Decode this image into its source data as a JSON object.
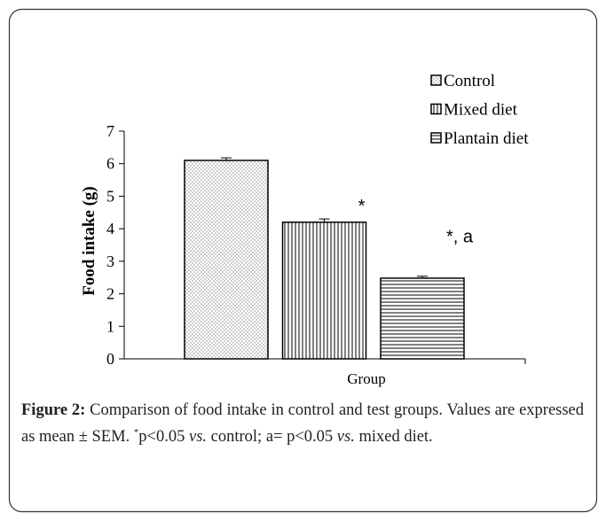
{
  "chart_data": {
    "type": "bar",
    "ylabel": "Food intake (g)",
    "xlabel": "Group",
    "ylim": [
      0,
      7
    ],
    "yticks": [
      0,
      1,
      2,
      3,
      4,
      5,
      6,
      7
    ],
    "series": [
      {
        "name": "Control",
        "pattern": "dots",
        "color": "#000000",
        "values": [
          6.1
        ],
        "errors": [
          0.08
        ]
      },
      {
        "name": "Mixed diet",
        "pattern": "vertical",
        "color": "#000000",
        "values": [
          4.2
        ],
        "errors": [
          0.1
        ]
      },
      {
        "name": "Plantain diet",
        "pattern": "horizontal",
        "color": "#000000",
        "values": [
          2.48
        ],
        "errors": [
          0.06
        ]
      }
    ],
    "annotations": [
      {
        "text": "*",
        "series": 1
      },
      {
        "text": "*, a",
        "series": 2
      }
    ],
    "legend": "top-right"
  },
  "caption": {
    "label": "Figure 2:",
    "segments": [
      "Comparison of food intake in control and test groups. Values are expressed as mean ± SEM. ",
      "*",
      "p<0.05 ",
      "vs.",
      " control; a= p<0.05 ",
      "vs.",
      " mixed diet."
    ]
  }
}
